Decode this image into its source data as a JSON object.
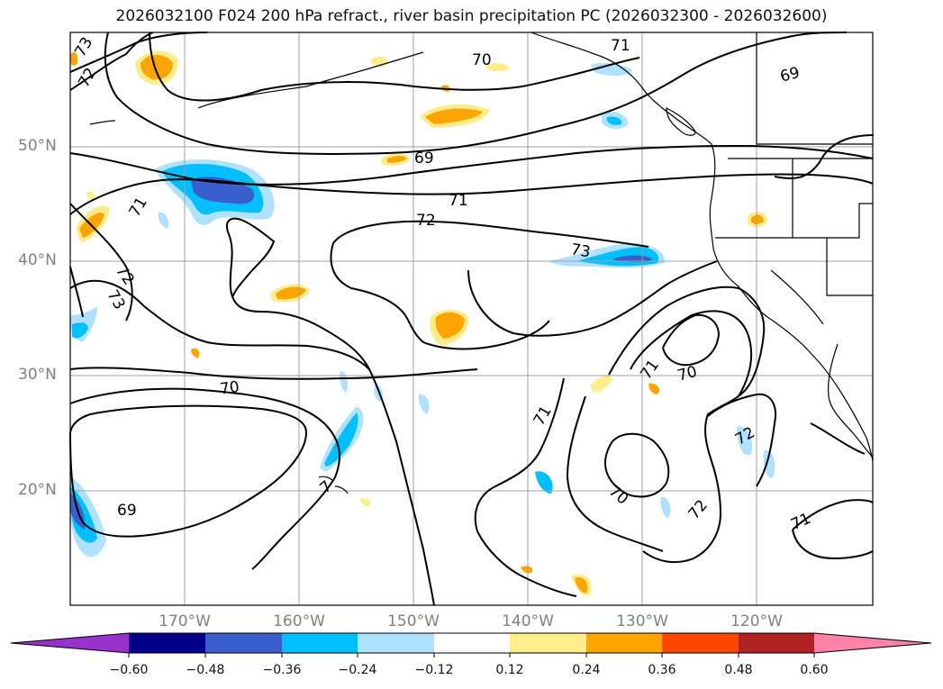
{
  "title": "2026032100 F024 200 hPa refract., river basin precipitation PC (2026032300 - 2026032600)",
  "lat_labels": [
    "50°N",
    "40°N",
    "30°N",
    "20°N"
  ],
  "lon_labels": [
    "170°W",
    "160°W",
    "150°W",
    "140°W",
    "130°W",
    "120°W"
  ],
  "contour_labels": [
    "73",
    "72",
    "70",
    "71",
    "69",
    "69",
    "71",
    "72",
    "71",
    "72",
    "73",
    "73",
    "70",
    "71",
    "70",
    "71",
    "70",
    "72",
    "72",
    "71",
    "69",
    "7"
  ],
  "colorbar": {
    "ticks": [
      "−0.60",
      "−0.48",
      "−0.36",
      "−0.24",
      "−0.12",
      "0.12",
      "0.24",
      "0.36",
      "0.48",
      "0.60"
    ],
    "colors": [
      "#9932cc",
      "#00008b",
      "#3a5fcd",
      "#00bfff",
      "#b0e2ff",
      "#ffffff",
      "#ffec8b",
      "#ffa500",
      "#ff4500",
      "#b22222",
      "#ff82ab"
    ]
  }
}
